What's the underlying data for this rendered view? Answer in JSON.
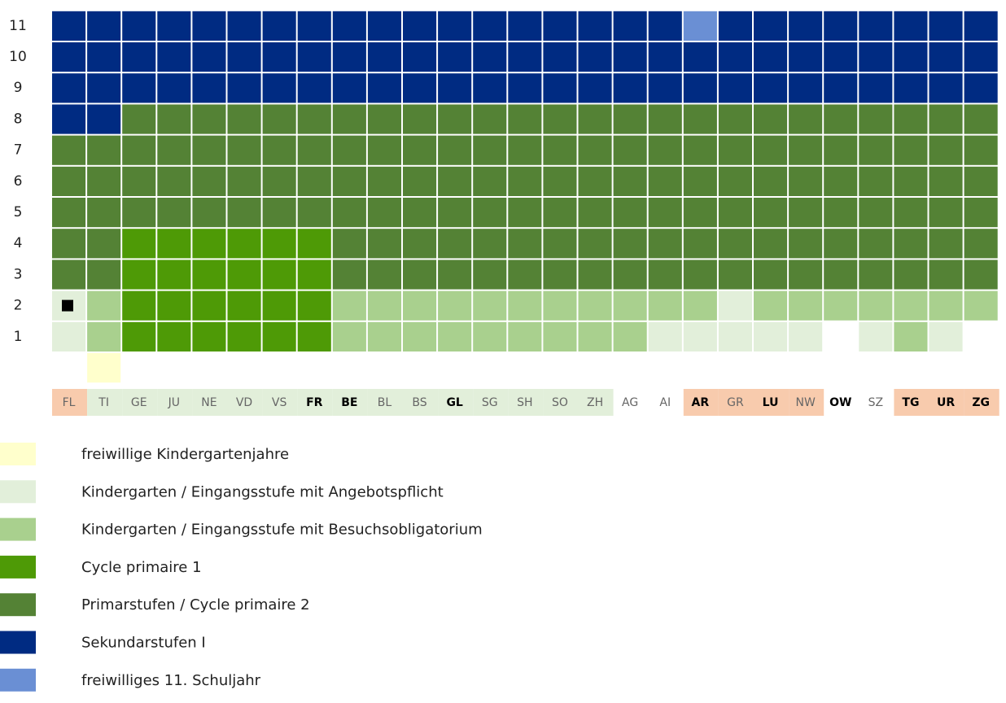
{
  "legend": [
    {
      "label": "freiwillige Kindergartenjahre",
      "color": "#ffffcc"
    },
    {
      "label": "Kindergarten / Eingangsstufe mit Angebotspflicht",
      "color": "#e2efda"
    },
    {
      "label": "Kindergarten / Eingangsstufe mit Besuchsobligatorium",
      "color": "#a9d08e"
    },
    {
      "label": "Cycle primaire 1",
      "color": "#4e9a06"
    },
    {
      "label": "Primarstufen / Cycle primaire 2",
      "color": "#548235"
    },
    {
      "label": "Sekundarstufen I",
      "color": "#002b82"
    },
    {
      "label": "freiwilliges 11. Schuljahr",
      "color": "#6a8fd4"
    }
  ],
  "rows": [
    null,
    "1",
    "2",
    "3",
    "4",
    "5",
    "6",
    "7",
    "8",
    "9",
    "10",
    "11"
  ],
  "marker": {
    "column": 0,
    "row": 2,
    "color": "#000000"
  },
  "columns": [
    {
      "label": "FL",
      "bold": false,
      "bg": "#f8cbad",
      "cells": [
        null,
        1,
        1,
        4,
        4,
        4,
        4,
        4,
        5,
        5,
        5,
        5
      ]
    },
    {
      "label": "TI",
      "bold": false,
      "bg": "#e2efda",
      "cells": [
        0,
        2,
        2,
        4,
        4,
        4,
        4,
        4,
        5,
        5,
        5,
        5
      ]
    },
    {
      "label": "GE",
      "bold": false,
      "bg": "#e2efda",
      "cells": [
        null,
        3,
        3,
        3,
        3,
        4,
        4,
        4,
        4,
        5,
        5,
        5
      ]
    },
    {
      "label": "JU",
      "bold": false,
      "bg": "#e2efda",
      "cells": [
        null,
        3,
        3,
        3,
        3,
        4,
        4,
        4,
        4,
        5,
        5,
        5
      ]
    },
    {
      "label": "NE",
      "bold": false,
      "bg": "#e2efda",
      "cells": [
        null,
        3,
        3,
        3,
        3,
        4,
        4,
        4,
        4,
        5,
        5,
        5
      ]
    },
    {
      "label": "VD",
      "bold": false,
      "bg": "#e2efda",
      "cells": [
        null,
        3,
        3,
        3,
        3,
        4,
        4,
        4,
        4,
        5,
        5,
        5
      ]
    },
    {
      "label": "VS",
      "bold": false,
      "bg": "#e2efda",
      "cells": [
        null,
        3,
        3,
        3,
        3,
        4,
        4,
        4,
        4,
        5,
        5,
        5
      ]
    },
    {
      "label": "FR",
      "bold": true,
      "bg": "#e2efda",
      "cells": [
        null,
        3,
        3,
        3,
        3,
        4,
        4,
        4,
        4,
        5,
        5,
        5
      ]
    },
    {
      "label": "BE",
      "bold": true,
      "bg": "#e2efda",
      "cells": [
        null,
        2,
        2,
        4,
        4,
        4,
        4,
        4,
        4,
        5,
        5,
        5
      ]
    },
    {
      "label": "BL",
      "bold": false,
      "bg": "#e2efda",
      "cells": [
        null,
        2,
        2,
        4,
        4,
        4,
        4,
        4,
        4,
        5,
        5,
        5
      ]
    },
    {
      "label": "BS",
      "bold": false,
      "bg": "#e2efda",
      "cells": [
        null,
        2,
        2,
        4,
        4,
        4,
        4,
        4,
        4,
        5,
        5,
        5
      ]
    },
    {
      "label": "GL",
      "bold": true,
      "bg": "#e2efda",
      "cells": [
        null,
        2,
        2,
        4,
        4,
        4,
        4,
        4,
        4,
        5,
        5,
        5
      ]
    },
    {
      "label": "SG",
      "bold": false,
      "bg": "#e2efda",
      "cells": [
        null,
        2,
        2,
        4,
        4,
        4,
        4,
        4,
        4,
        5,
        5,
        5
      ]
    },
    {
      "label": "SH",
      "bold": false,
      "bg": "#e2efda",
      "cells": [
        null,
        2,
        2,
        4,
        4,
        4,
        4,
        4,
        4,
        5,
        5,
        5
      ]
    },
    {
      "label": "SO",
      "bold": false,
      "bg": "#e2efda",
      "cells": [
        null,
        2,
        2,
        4,
        4,
        4,
        4,
        4,
        4,
        5,
        5,
        5
      ]
    },
    {
      "label": "ZH",
      "bold": false,
      "bg": "#e2efda",
      "cells": [
        null,
        2,
        2,
        4,
        4,
        4,
        4,
        4,
        4,
        5,
        5,
        5
      ]
    },
    {
      "label": "AG",
      "bold": false,
      "bg": null,
      "cells": [
        null,
        2,
        2,
        4,
        4,
        4,
        4,
        4,
        4,
        5,
        5,
        5
      ]
    },
    {
      "label": "AI",
      "bold": false,
      "bg": null,
      "cells": [
        null,
        1,
        2,
        4,
        4,
        4,
        4,
        4,
        4,
        5,
        5,
        5
      ]
    },
    {
      "label": "AR",
      "bold": true,
      "bg": "#f8cbad",
      "cells": [
        null,
        1,
        2,
        4,
        4,
        4,
        4,
        4,
        4,
        5,
        5,
        6
      ]
    },
    {
      "label": "GR",
      "bold": false,
      "bg": "#f8cbad",
      "cells": [
        null,
        1,
        1,
        4,
        4,
        4,
        4,
        4,
        4,
        5,
        5,
        5
      ]
    },
    {
      "label": "LU",
      "bold": true,
      "bg": "#f8cbad",
      "cells": [
        null,
        1,
        2,
        4,
        4,
        4,
        4,
        4,
        4,
        5,
        5,
        5
      ]
    },
    {
      "label": "NW",
      "bold": false,
      "bg": "#f8cbad",
      "cells": [
        null,
        1,
        2,
        4,
        4,
        4,
        4,
        4,
        4,
        5,
        5,
        5
      ]
    },
    {
      "label": "OW",
      "bold": true,
      "bg": null,
      "cells": [
        null,
        null,
        2,
        4,
        4,
        4,
        4,
        4,
        4,
        5,
        5,
        5
      ]
    },
    {
      "label": "SZ",
      "bold": false,
      "bg": null,
      "cells": [
        null,
        1,
        2,
        4,
        4,
        4,
        4,
        4,
        4,
        5,
        5,
        5
      ]
    },
    {
      "label": "TG",
      "bold": true,
      "bg": "#f8cbad",
      "cells": [
        null,
        2,
        2,
        4,
        4,
        4,
        4,
        4,
        4,
        5,
        5,
        5
      ]
    },
    {
      "label": "UR",
      "bold": true,
      "bg": "#f8cbad",
      "cells": [
        null,
        1,
        2,
        4,
        4,
        4,
        4,
        4,
        4,
        5,
        5,
        5
      ]
    },
    {
      "label": "ZG",
      "bold": true,
      "bg": "#f8cbad",
      "cells": [
        null,
        null,
        2,
        4,
        4,
        4,
        4,
        4,
        4,
        5,
        5,
        5
      ]
    }
  ]
}
